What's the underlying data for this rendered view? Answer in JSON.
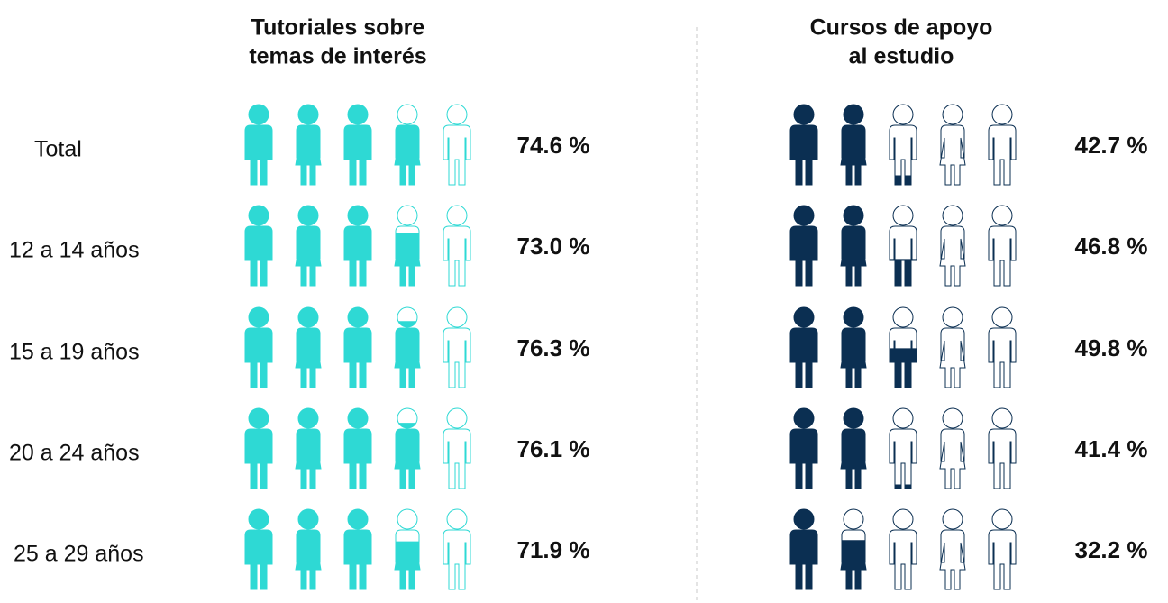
{
  "chart_data": {
    "type": "pictograph",
    "categories": [
      "Total",
      "12 a 14 años",
      "15 a 19 años",
      "20 a 24 años",
      "25 a 29 años"
    ],
    "icons": 5,
    "series": [
      {
        "name": [
          "Tutoriales sobre",
          "temas de interés"
        ],
        "color": "#2ed9d4",
        "values": [
          74.6,
          73.0,
          76.3,
          76.1,
          71.9
        ],
        "value_labels": [
          "74.6 %",
          "73.0 %",
          "76.3 %",
          "76.1 %",
          "71.9 %"
        ]
      },
      {
        "name": [
          "Cursos de apoyo",
          "al estudio"
        ],
        "color": "#0b2f52",
        "values": [
          42.7,
          46.8,
          49.8,
          41.4,
          32.2
        ],
        "value_labels": [
          "42.7 %",
          "46.8 %",
          "49.8 %",
          "41.4 %",
          "32.2 %"
        ]
      }
    ]
  }
}
